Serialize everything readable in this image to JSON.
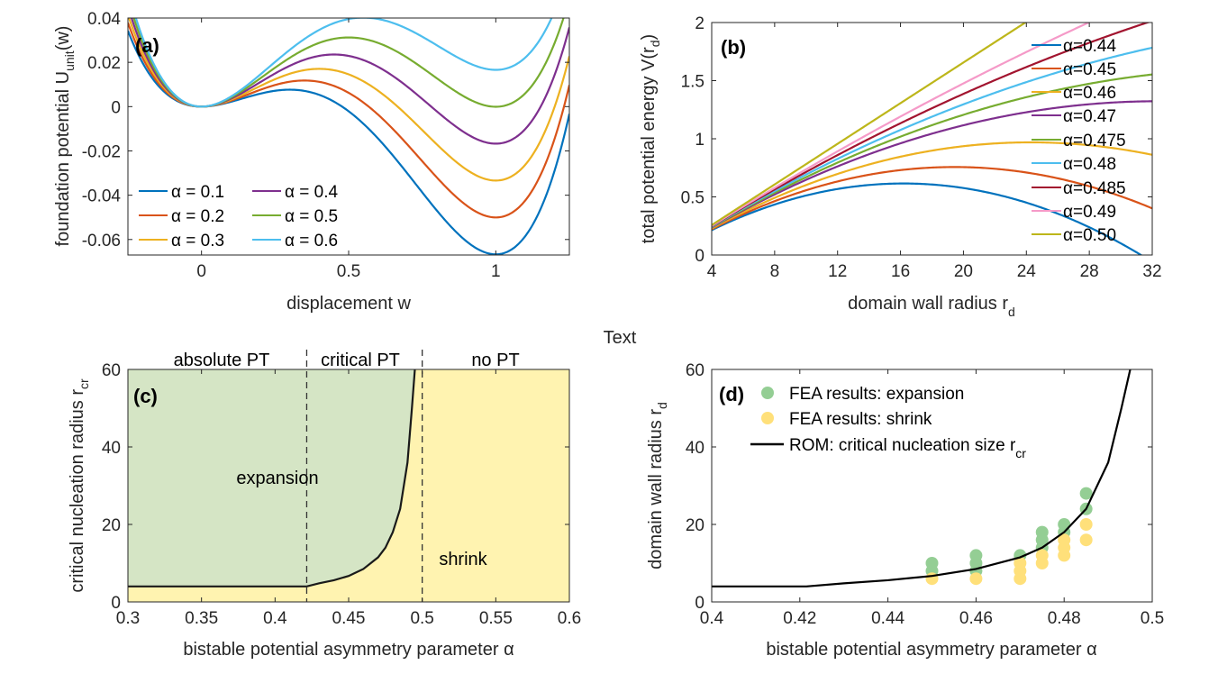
{
  "center_text": "Text",
  "colors": {
    "blue": "#0072BD",
    "orange": "#D95319",
    "yellow": "#EDB120",
    "purple": "#7E2F8E",
    "green": "#77AC30",
    "cyan": "#4DBEEE",
    "maroon": "#A2142F",
    "pink": "#F59AC8",
    "olive": "#BDB61A",
    "green_fill": "#D5E5C5",
    "yellow_fill": "#FFF3B0",
    "fea_green": "#94CE94",
    "fea_yellow": "#FFE07A"
  },
  "chart_data": [
    {
      "id": "a",
      "type": "line",
      "panel_label": "(a)",
      "xlabel": "displacement w",
      "ylabel_main": "foundation potential U",
      "ylabel_sub": "unit",
      "ylabel_tail": "(w)",
      "xlim": [
        -0.25,
        1.25
      ],
      "ylim": [
        -0.067,
        0.04
      ],
      "xticks": [
        0,
        0.5,
        1
      ],
      "xtick_labels": [
        "0",
        "0.5",
        "1"
      ],
      "yticks": [
        0.04,
        0.02,
        0,
        -0.02,
        -0.04,
        -0.06
      ],
      "ytick_labels": [
        "0.04",
        "0.02",
        "0",
        "-0.02",
        "-0.04",
        "-0.06"
      ],
      "legend_position": "bottom-left",
      "series": [
        {
          "name": "α = 0.1",
          "alpha": 0.1,
          "color": "#0072BD"
        },
        {
          "name": "α = 0.2",
          "alpha": 0.2,
          "color": "#D95319"
        },
        {
          "name": "α = 0.3",
          "alpha": 0.3,
          "color": "#EDB120"
        },
        {
          "name": "α = 0.4",
          "alpha": 0.4,
          "color": "#7E2F8E"
        },
        {
          "name": "α = 0.5",
          "alpha": 0.5,
          "color": "#77AC30"
        },
        {
          "name": "α = 0.6",
          "alpha": 0.6,
          "color": "#4DBEEE"
        }
      ]
    },
    {
      "id": "b",
      "type": "line",
      "panel_label": "(b)",
      "xlabel_main": "domain wall radius r",
      "xlabel_sub": "d",
      "ylabel_main": "total potential energy V(r",
      "ylabel_sub": "d",
      "ylabel_tail": ")",
      "xlim": [
        4,
        32
      ],
      "ylim": [
        0,
        2
      ],
      "xticks": [
        4,
        8,
        12,
        16,
        20,
        24,
        28,
        32
      ],
      "xtick_labels": [
        "4",
        "8",
        "12",
        "16",
        "20",
        "24",
        "28",
        "32"
      ],
      "yticks": [
        0,
        0.5,
        1,
        1.5,
        2
      ],
      "ytick_labels": [
        "0",
        "0.5",
        "1",
        "1.5",
        "2"
      ],
      "legend_position": "top-right",
      "series": [
        {
          "name": "α=0.44",
          "alpha": 0.44,
          "color": "#0072BD"
        },
        {
          "name": "α=0.45",
          "alpha": 0.45,
          "color": "#D95319"
        },
        {
          "name": "α=0.46",
          "alpha": 0.46,
          "color": "#EDB120"
        },
        {
          "name": "α=0.47",
          "alpha": 0.47,
          "color": "#7E2F8E"
        },
        {
          "name": "α=0.475",
          "alpha": 0.475,
          "color": "#77AC30"
        },
        {
          "name": "α=0.48",
          "alpha": 0.48,
          "color": "#4DBEEE"
        },
        {
          "name": "α=0.485",
          "alpha": 0.485,
          "color": "#A2142F"
        },
        {
          "name": "α=0.49",
          "alpha": 0.49,
          "color": "#F59AC8"
        },
        {
          "name": "α=0.50",
          "alpha": 0.5,
          "color": "#BDB61A"
        }
      ]
    },
    {
      "id": "c",
      "type": "area",
      "panel_label": "(c)",
      "xlabel": "bistable potential asymmetry parameter α",
      "ylabel_main": "critical nucleation radius r",
      "ylabel_sub": "cr",
      "xlim": [
        0.3,
        0.6
      ],
      "ylim": [
        0,
        60
      ],
      "xticks": [
        0.3,
        0.35,
        0.4,
        0.45,
        0.5,
        0.55,
        0.6
      ],
      "xtick_labels": [
        "0.3",
        "0.35",
        "0.4",
        "0.45",
        "0.5",
        "0.55",
        "0.6"
      ],
      "yticks": [
        0,
        20,
        40,
        60
      ],
      "ytick_labels": [
        "0",
        "20",
        "40",
        "60"
      ],
      "dividers": [
        0.4215,
        0.5
      ],
      "regions": [
        "absolute PT",
        "critical PT",
        "no PT"
      ],
      "annotations": [
        "expansion",
        "shrink"
      ],
      "curve": {
        "alpha": [
          0.3,
          0.4215,
          0.43,
          0.44,
          0.45,
          0.46,
          0.47,
          0.475,
          0.48,
          0.485,
          0.49,
          0.493,
          0.495
        ],
        "rcr": [
          4,
          4,
          4.8,
          5.6,
          6.7,
          8.5,
          11.5,
          14,
          18,
          24,
          36,
          50,
          60
        ]
      }
    },
    {
      "id": "d",
      "type": "scatter",
      "panel_label": "(d)",
      "xlabel": "bistable potential asymmetry parameter α",
      "ylabel_main": "domain wall radius r",
      "ylabel_sub": "d",
      "xlim": [
        0.4,
        0.5
      ],
      "ylim": [
        0,
        60
      ],
      "xticks": [
        0.4,
        0.42,
        0.44,
        0.46,
        0.48,
        0.5
      ],
      "xtick_labels": [
        "0.4",
        "0.42",
        "0.44",
        "0.46",
        "0.48",
        "0.5"
      ],
      "yticks": [
        0,
        20,
        40,
        60
      ],
      "ytick_labels": [
        "0",
        "20",
        "40",
        "60"
      ],
      "legend_position": "top-left",
      "legend": {
        "expansion": "FEA results: expansion",
        "shrink": "FEA results: shrink",
        "rom_main": "ROM: critical nucleation size r",
        "rom_sub": "cr"
      },
      "expansion_points": [
        [
          0.45,
          8
        ],
        [
          0.45,
          10
        ],
        [
          0.46,
          8
        ],
        [
          0.46,
          10
        ],
        [
          0.46,
          12
        ],
        [
          0.47,
          12
        ],
        [
          0.475,
          14
        ],
        [
          0.475,
          16
        ],
        [
          0.475,
          18
        ],
        [
          0.48,
          18
        ],
        [
          0.48,
          20
        ],
        [
          0.485,
          24
        ],
        [
          0.485,
          28
        ]
      ],
      "shrink_points": [
        [
          0.45,
          6
        ],
        [
          0.46,
          6
        ],
        [
          0.47,
          6
        ],
        [
          0.47,
          8
        ],
        [
          0.47,
          10
        ],
        [
          0.475,
          10
        ],
        [
          0.475,
          12
        ],
        [
          0.48,
          12
        ],
        [
          0.48,
          14
        ],
        [
          0.48,
          16
        ],
        [
          0.485,
          16
        ],
        [
          0.485,
          20
        ]
      ]
    }
  ]
}
